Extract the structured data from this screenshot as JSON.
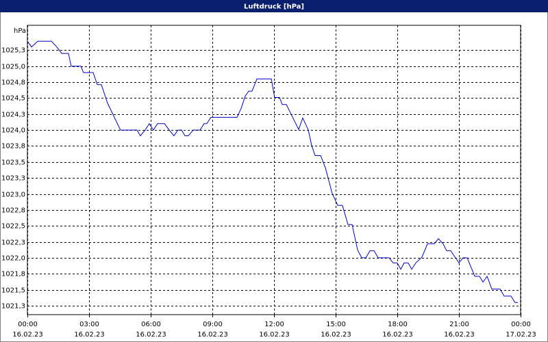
{
  "chart_data": {
    "type": "line",
    "title": "Luftdruck [hPa]",
    "y_label": "hPa",
    "x": [
      0,
      0.2,
      0.5,
      1.17,
      1.43,
      1.67,
      2,
      2.13,
      2.6,
      2.73,
      3.2,
      3.4,
      3.6,
      3.9,
      4.53,
      5.33,
      5.5,
      5.73,
      5.93,
      6.13,
      6.33,
      6.67,
      6.9,
      7.13,
      7.33,
      7.5,
      7.67,
      7.83,
      8.07,
      8.4,
      8.6,
      8.73,
      8.93,
      10.2,
      10.4,
      10.6,
      10.77,
      10.93,
      11.17,
      11.87,
      12.03,
      12.27,
      12.4,
      12.6,
      12.83,
      13.2,
      13.4,
      13.67,
      13.83,
      14,
      14.27,
      14.5,
      14.83,
      15.1,
      15.33,
      15.6,
      15.8,
      16.07,
      16.27,
      16.47,
      16.67,
      16.87,
      17.07,
      17.6,
      17.8,
      18,
      18.17,
      18.33,
      18.53,
      18.7,
      18.9,
      19.2,
      19.47,
      19.8,
      20,
      20.23,
      20.4,
      20.6,
      20.83,
      21,
      21.2,
      21.4,
      21.77,
      22,
      22.17,
      22.37,
      22.6,
      23,
      23.2,
      23.53,
      23.73,
      23.87
    ],
    "values": [
      1025.39,
      1025.3,
      1025.39,
      1025.39,
      1025.3,
      1025.2,
      1025.2,
      1025.0,
      1025.0,
      1024.9,
      1024.9,
      1024.71,
      1024.71,
      1024.42,
      1024.0,
      1024.0,
      1023.91,
      1024.0,
      1024.1,
      1024.0,
      1024.1,
      1024.1,
      1024.0,
      1023.91,
      1024.0,
      1024.0,
      1023.91,
      1023.91,
      1024.0,
      1024.0,
      1024.1,
      1024.1,
      1024.2,
      1024.2,
      1024.34,
      1024.53,
      1024.61,
      1024.61,
      1024.8,
      1024.8,
      1024.51,
      1024.51,
      1024.4,
      1024.4,
      1024.25,
      1024.01,
      1024.19,
      1024.0,
      1023.76,
      1023.6,
      1023.6,
      1023.41,
      1023.01,
      1022.82,
      1022.82,
      1022.52,
      1022.52,
      1022.12,
      1022.0,
      1022.0,
      1022.11,
      1022.11,
      1022.0,
      1022.0,
      1021.92,
      1021.92,
      1021.82,
      1021.92,
      1021.92,
      1021.82,
      1021.92,
      1022.01,
      1022.22,
      1022.22,
      1022.3,
      1022.22,
      1022.11,
      1022.11,
      1022.0,
      1021.92,
      1022.0,
      1022.0,
      1021.71,
      1021.71,
      1021.62,
      1021.71,
      1021.51,
      1021.51,
      1021.4,
      1021.4,
      1021.3,
      1021.3
    ],
    "color": "#0000c8",
    "xlim": [
      0,
      24
    ],
    "xticks": [
      {
        "value": 0,
        "label": "00:00"
      },
      {
        "value": 3,
        "label": "03:00"
      },
      {
        "value": 6,
        "label": "06:00"
      },
      {
        "value": 9,
        "label": "09:00"
      },
      {
        "value": 12,
        "label": "12:00"
      },
      {
        "value": 15,
        "label": "15:00"
      },
      {
        "value": 18,
        "label": "18:00"
      },
      {
        "value": 21,
        "label": "21:00"
      },
      {
        "value": 24,
        "label": "00:00"
      }
    ],
    "xtick_dates": [
      "16.02.23",
      "16.02.23",
      "16.02.23",
      "16.02.23",
      "16.02.23",
      "16.02.23",
      "16.02.23",
      "16.02.23",
      "17.02.23"
    ],
    "ylim": [
      1021.11,
      1025.64
    ],
    "yticks": [
      {
        "value": 1025.25,
        "label": "1025,3"
      },
      {
        "value": 1025,
        "label": "1025,0"
      },
      {
        "value": 1024.75,
        "label": "1024,8"
      },
      {
        "value": 1024.5,
        "label": "1024,5"
      },
      {
        "value": 1024.25,
        "label": "1024,3"
      },
      {
        "value": 1024,
        "label": "1024,0"
      },
      {
        "value": 1023.75,
        "label": "1023,8"
      },
      {
        "value": 1023.5,
        "label": "1023,5"
      },
      {
        "value": 1023.25,
        "label": "1023,3"
      },
      {
        "value": 1023,
        "label": "1023,0"
      },
      {
        "value": 1022.75,
        "label": "1022,8"
      },
      {
        "value": 1022.5,
        "label": "1022,5"
      },
      {
        "value": 1022.25,
        "label": "1022,3"
      },
      {
        "value": 1022,
        "label": "1022,0"
      },
      {
        "value": 1021.75,
        "label": "1021,8"
      },
      {
        "value": 1021.5,
        "label": "1021,5"
      },
      {
        "value": 1021.25,
        "label": "1021,3"
      }
    ],
    "grid": true
  }
}
